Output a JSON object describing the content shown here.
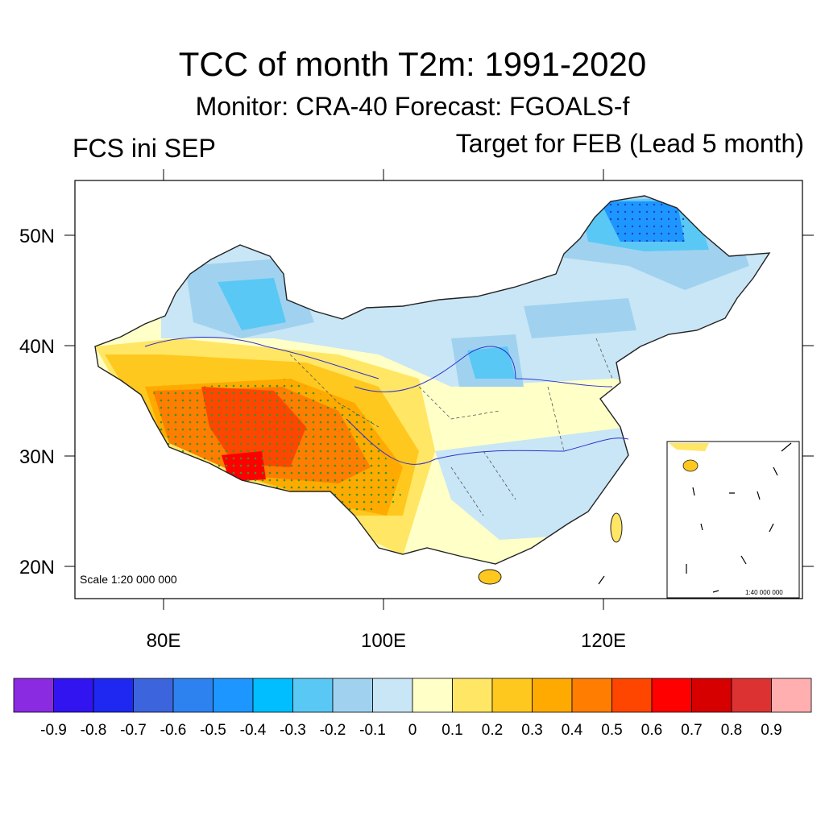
{
  "title": "TCC of month T2m: 1991-2020",
  "subtitle": "Monitor: CRA-40   Forecast: FGOALS-f",
  "left_label": "FCS ini SEP",
  "right_label": "Target for FEB (Lead 5 month)",
  "scale_main": "Scale 1:20 000 000",
  "scale_inset": "1:40 000 000",
  "lat_labels": [
    "50N",
    "40N",
    "30N",
    "20N"
  ],
  "lon_labels": [
    "80E",
    "100E",
    "120E"
  ],
  "colorbar": {
    "colors": [
      "#8a2be2",
      "#3214f0",
      "#1e28f0",
      "#3c64dc",
      "#2d82f0",
      "#1e96ff",
      "#00beff",
      "#5ac8f5",
      "#a0d2f0",
      "#c8e6f5",
      "#ffffc8",
      "#ffe664",
      "#ffc81e",
      "#ffaa00",
      "#ff7d00",
      "#ff4600",
      "#ff0000",
      "#d70000",
      "#dc3232",
      "#ffafaf"
    ],
    "labels": [
      "-0.9",
      "-0.8",
      "-0.7",
      "-0.6",
      "-0.5",
      "-0.4",
      "-0.3",
      "-0.2",
      "-0.1",
      "0",
      "0.1",
      "0.2",
      "0.3",
      "0.4",
      "0.5",
      "0.6",
      "0.7",
      "0.8",
      "0.9"
    ]
  }
}
